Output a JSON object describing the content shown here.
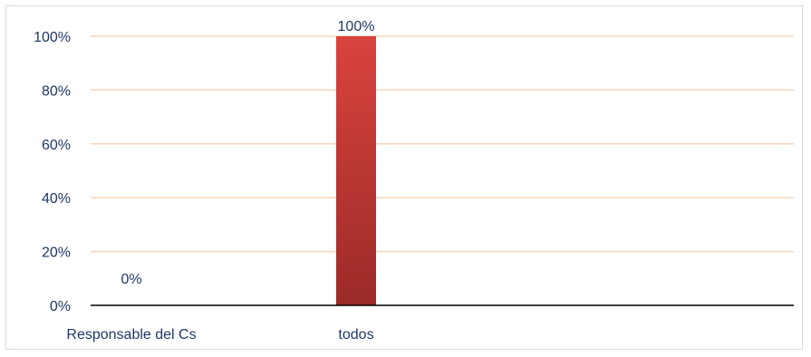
{
  "chart_data": {
    "type": "bar",
    "categories": [
      "Responsable del Cs",
      "todos"
    ],
    "values": [
      0,
      100
    ],
    "data_labels": [
      "0%",
      "100%"
    ],
    "y_ticks": [
      "0%",
      "20%",
      "40%",
      "60%",
      "80%",
      "100%"
    ],
    "ylim": [
      0,
      100
    ],
    "y_unit": "%",
    "grid": true,
    "title": "",
    "xlabel": "",
    "ylabel": "",
    "colors": {
      "bar_top": "#d9433e",
      "bar_bottom": "#9b2b28",
      "gridline": "#f6d5b8",
      "axis": "#000000",
      "text": "#1f3864"
    }
  }
}
